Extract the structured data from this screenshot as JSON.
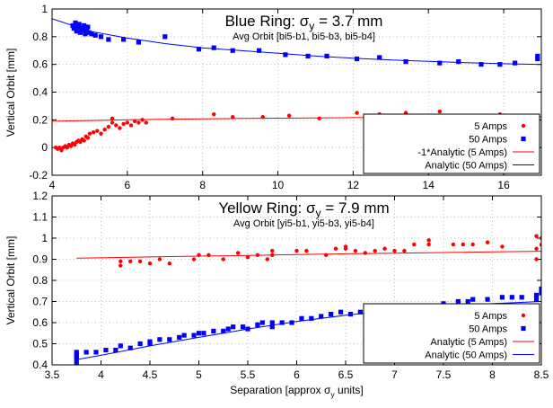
{
  "chart_data": [
    {
      "type": "scatter",
      "title": "Blue Ring: σy = 3.7 mm",
      "title_parts": {
        "prefix": "Blue Ring: σ",
        "subscript": "y",
        "suffix": " = 3.7 mm"
      },
      "subtitle": "Avg Orbit [bi5-b1, bi5-b3, bi5-b4]",
      "xlabel": "",
      "ylabel": "Vertical Orbit [mm]",
      "xlim": [
        4,
        17
      ],
      "ylim": [
        -0.2,
        1.0
      ],
      "xticks": [
        4,
        6,
        8,
        10,
        12,
        14,
        16
      ],
      "yticks": [
        -0.2,
        0,
        0.2,
        0.4,
        0.6,
        0.8,
        1
      ],
      "xtick_labels": [
        "4",
        "6",
        "8",
        "10",
        "12",
        "14",
        "16"
      ],
      "ytick_labels": [
        "-0.2",
        "0",
        "0.2",
        "0.4",
        "0.6",
        "0.8",
        "1"
      ],
      "grid": true,
      "legend_position": "bottom-right",
      "series": [
        {
          "name": "5 Amps",
          "kind": "points",
          "marker": "circle",
          "color": "#ff0000",
          "x": [
            4.1,
            4.15,
            4.2,
            4.25,
            4.3,
            4.35,
            4.4,
            4.45,
            4.5,
            4.55,
            4.6,
            4.65,
            4.7,
            4.75,
            4.8,
            4.85,
            4.9,
            4.95,
            5.0,
            5.1,
            5.2,
            5.3,
            5.4,
            5.5,
            5.6,
            5.6,
            5.7,
            5.8,
            5.9,
            6.0,
            6.1,
            6.2,
            6.3,
            6.4,
            6.5,
            7.2,
            8.3,
            8.8,
            9.6,
            10.3,
            11.1,
            12.1,
            12.7,
            13.4,
            14.3,
            15.9
          ],
          "y": [
            0.0,
            -0.01,
            0.0,
            -0.02,
            0.0,
            0.01,
            0.0,
            0.02,
            0.01,
            0.03,
            0.02,
            0.04,
            0.05,
            0.04,
            0.06,
            0.05,
            0.08,
            0.07,
            0.1,
            0.11,
            0.12,
            0.1,
            0.13,
            0.15,
            0.18,
            0.21,
            0.16,
            0.14,
            0.17,
            0.18,
            0.16,
            0.19,
            0.18,
            0.2,
            0.18,
            0.21,
            0.24,
            0.22,
            0.22,
            0.23,
            0.21,
            0.25,
            0.24,
            0.25,
            0.26,
            0.24
          ]
        },
        {
          "name": "50 Amps",
          "kind": "points",
          "marker": "square",
          "color": "#0000ff",
          "x": [
            4.55,
            4.58,
            4.62,
            4.65,
            4.68,
            4.72,
            4.75,
            4.78,
            4.82,
            4.85,
            4.88,
            4.92,
            4.95,
            4.98,
            5.05,
            5.15,
            5.3,
            5.5,
            5.9,
            6.3,
            7.0,
            7.9,
            8.3,
            8.8,
            9.5,
            10.2,
            10.8,
            11.3,
            12.1,
            12.7,
            13.4,
            14.3,
            14.8,
            15.4,
            15.9,
            16.3,
            16.9,
            16.9
          ],
          "y": [
            0.88,
            0.86,
            0.9,
            0.84,
            0.87,
            0.89,
            0.83,
            0.86,
            0.85,
            0.88,
            0.82,
            0.84,
            0.87,
            0.83,
            0.82,
            0.81,
            0.8,
            0.78,
            0.78,
            0.76,
            0.8,
            0.71,
            0.72,
            0.7,
            0.7,
            0.67,
            0.66,
            0.66,
            0.64,
            0.65,
            0.62,
            0.61,
            0.62,
            0.6,
            0.6,
            0.61,
            0.64,
            0.66
          ]
        },
        {
          "name": "-1*Analytic (5 Amps)",
          "kind": "line",
          "color": "#ff0000",
          "x": [
            4,
            5,
            6,
            7,
            8,
            9,
            10,
            11,
            12,
            13,
            14,
            15,
            16,
            17
          ],
          "y": [
            0.19,
            0.195,
            0.2,
            0.204,
            0.207,
            0.21,
            0.212,
            0.214,
            0.216,
            0.218,
            0.219,
            0.22,
            0.221,
            0.222
          ]
        },
        {
          "name": "Analytic (50 Amps)",
          "kind": "line",
          "color": "#0000ff",
          "x": [
            4,
            5,
            6,
            7,
            8,
            9,
            10,
            11,
            12,
            13,
            14,
            15,
            16,
            17
          ],
          "y": [
            0.93,
            0.84,
            0.79,
            0.75,
            0.72,
            0.7,
            0.68,
            0.66,
            0.645,
            0.632,
            0.622,
            0.612,
            0.605,
            0.6
          ]
        }
      ]
    },
    {
      "type": "scatter",
      "title": "Yellow Ring: σy = 7.9 mm",
      "title_parts": {
        "prefix": "Yellow Ring: σ",
        "subscript": "y",
        "suffix": " = 7.9 mm"
      },
      "subtitle": "Avg Orbit [yi5-b1, yi5-b3, yi5-b4]",
      "xlabel": "Separation [approx σy units]",
      "xlabel_parts": {
        "prefix": "Separation [approx σ",
        "subscript": "y",
        "suffix": " units]"
      },
      "ylabel": "Vertical Orbit [mm]",
      "xlim": [
        3.5,
        8.5
      ],
      "ylim": [
        0.4,
        1.2
      ],
      "xticks": [
        3.5,
        4,
        4.5,
        5,
        5.5,
        6,
        6.5,
        7,
        7.5,
        8,
        8.5
      ],
      "yticks": [
        0.4,
        0.5,
        0.6,
        0.7,
        0.8,
        0.9,
        1,
        1.1,
        1.2
      ],
      "xtick_labels": [
        "3.5",
        "4",
        "4.5",
        "5",
        "5.5",
        "6",
        "6.5",
        "7",
        "7.5",
        "8",
        "8.5"
      ],
      "ytick_labels": [
        "0.4",
        "0.5",
        "0.6",
        "0.7",
        "0.8",
        "0.9",
        "1",
        "1.1",
        "1.2"
      ],
      "grid": true,
      "legend_position": "bottom-right",
      "series": [
        {
          "name": "5 Amps",
          "kind": "points",
          "marker": "circle",
          "color": "#ff0000",
          "x": [
            4.2,
            4.2,
            4.3,
            4.4,
            4.5,
            4.6,
            4.7,
            4.95,
            5.0,
            5.1,
            5.25,
            5.4,
            5.5,
            5.6,
            5.7,
            5.75,
            5.75,
            6.0,
            6.1,
            6.3,
            6.4,
            6.5,
            6.5,
            6.6,
            6.7,
            6.8,
            6.9,
            7.0,
            7.1,
            7.2,
            7.35,
            7.35,
            7.6,
            7.7,
            7.8,
            7.95,
            8.1,
            8.45,
            8.45,
            8.5,
            8.45,
            8.5
          ],
          "y": [
            0.87,
            0.89,
            0.89,
            0.89,
            0.88,
            0.9,
            0.88,
            0.9,
            0.92,
            0.92,
            0.9,
            0.93,
            0.91,
            0.92,
            0.9,
            0.92,
            0.94,
            0.94,
            0.94,
            0.92,
            0.95,
            0.95,
            0.96,
            0.94,
            0.93,
            0.94,
            0.95,
            0.94,
            0.94,
            0.97,
            0.97,
            0.99,
            0.97,
            0.97,
            0.97,
            0.98,
            0.96,
            0.9,
            0.95,
            1.0,
            1.01,
            0.97
          ]
        },
        {
          "name": "50 Amps",
          "kind": "points",
          "marker": "square",
          "color": "#0000ff",
          "x": [
            3.75,
            3.75,
            3.75,
            3.75,
            3.75,
            3.85,
            3.95,
            4.05,
            4.15,
            4.2,
            4.3,
            4.4,
            4.5,
            4.5,
            4.6,
            4.7,
            4.8,
            4.85,
            4.95,
            5.0,
            5.05,
            5.15,
            5.25,
            5.3,
            5.35,
            5.45,
            5.5,
            5.6,
            5.65,
            5.75,
            5.75,
            5.85,
            5.95,
            6.05,
            6.15,
            6.25,
            6.35,
            6.45,
            6.55,
            6.65,
            6.75,
            6.85,
            7.05,
            7.15,
            7.25,
            7.35,
            7.5,
            7.65,
            7.75,
            7.8,
            7.95,
            8.1,
            8.2,
            8.3,
            8.45,
            8.45,
            8.5,
            8.5
          ],
          "y": [
            0.41,
            0.43,
            0.44,
            0.45,
            0.46,
            0.46,
            0.46,
            0.47,
            0.47,
            0.49,
            0.48,
            0.5,
            0.5,
            0.51,
            0.52,
            0.52,
            0.53,
            0.54,
            0.54,
            0.55,
            0.55,
            0.56,
            0.56,
            0.57,
            0.58,
            0.58,
            0.57,
            0.59,
            0.6,
            0.58,
            0.6,
            0.6,
            0.6,
            0.62,
            0.62,
            0.63,
            0.64,
            0.65,
            0.64,
            0.65,
            0.65,
            0.66,
            0.66,
            0.66,
            0.67,
            0.68,
            0.69,
            0.7,
            0.7,
            0.71,
            0.71,
            0.72,
            0.72,
            0.72,
            0.71,
            0.73,
            0.74,
            0.76
          ]
        },
        {
          "name": "Analytic (5 Amps)",
          "kind": "line",
          "color": "#ff0000",
          "x": [
            3.75,
            4,
            4.5,
            5,
            5.5,
            6,
            6.5,
            7,
            7.5,
            8,
            8.5
          ],
          "y": [
            0.905,
            0.907,
            0.911,
            0.915,
            0.918,
            0.922,
            0.926,
            0.929,
            0.932,
            0.935,
            0.938
          ]
        },
        {
          "name": "Analytic (50 Amps)",
          "kind": "line",
          "color": "#0000ff",
          "x": [
            3.75,
            4,
            4.5,
            5,
            5.5,
            6,
            6.5,
            7,
            7.5,
            8,
            8.5
          ],
          "y": [
            0.425,
            0.445,
            0.49,
            0.53,
            0.57,
            0.605,
            0.635,
            0.66,
            0.68,
            0.69,
            0.7
          ]
        }
      ]
    }
  ]
}
